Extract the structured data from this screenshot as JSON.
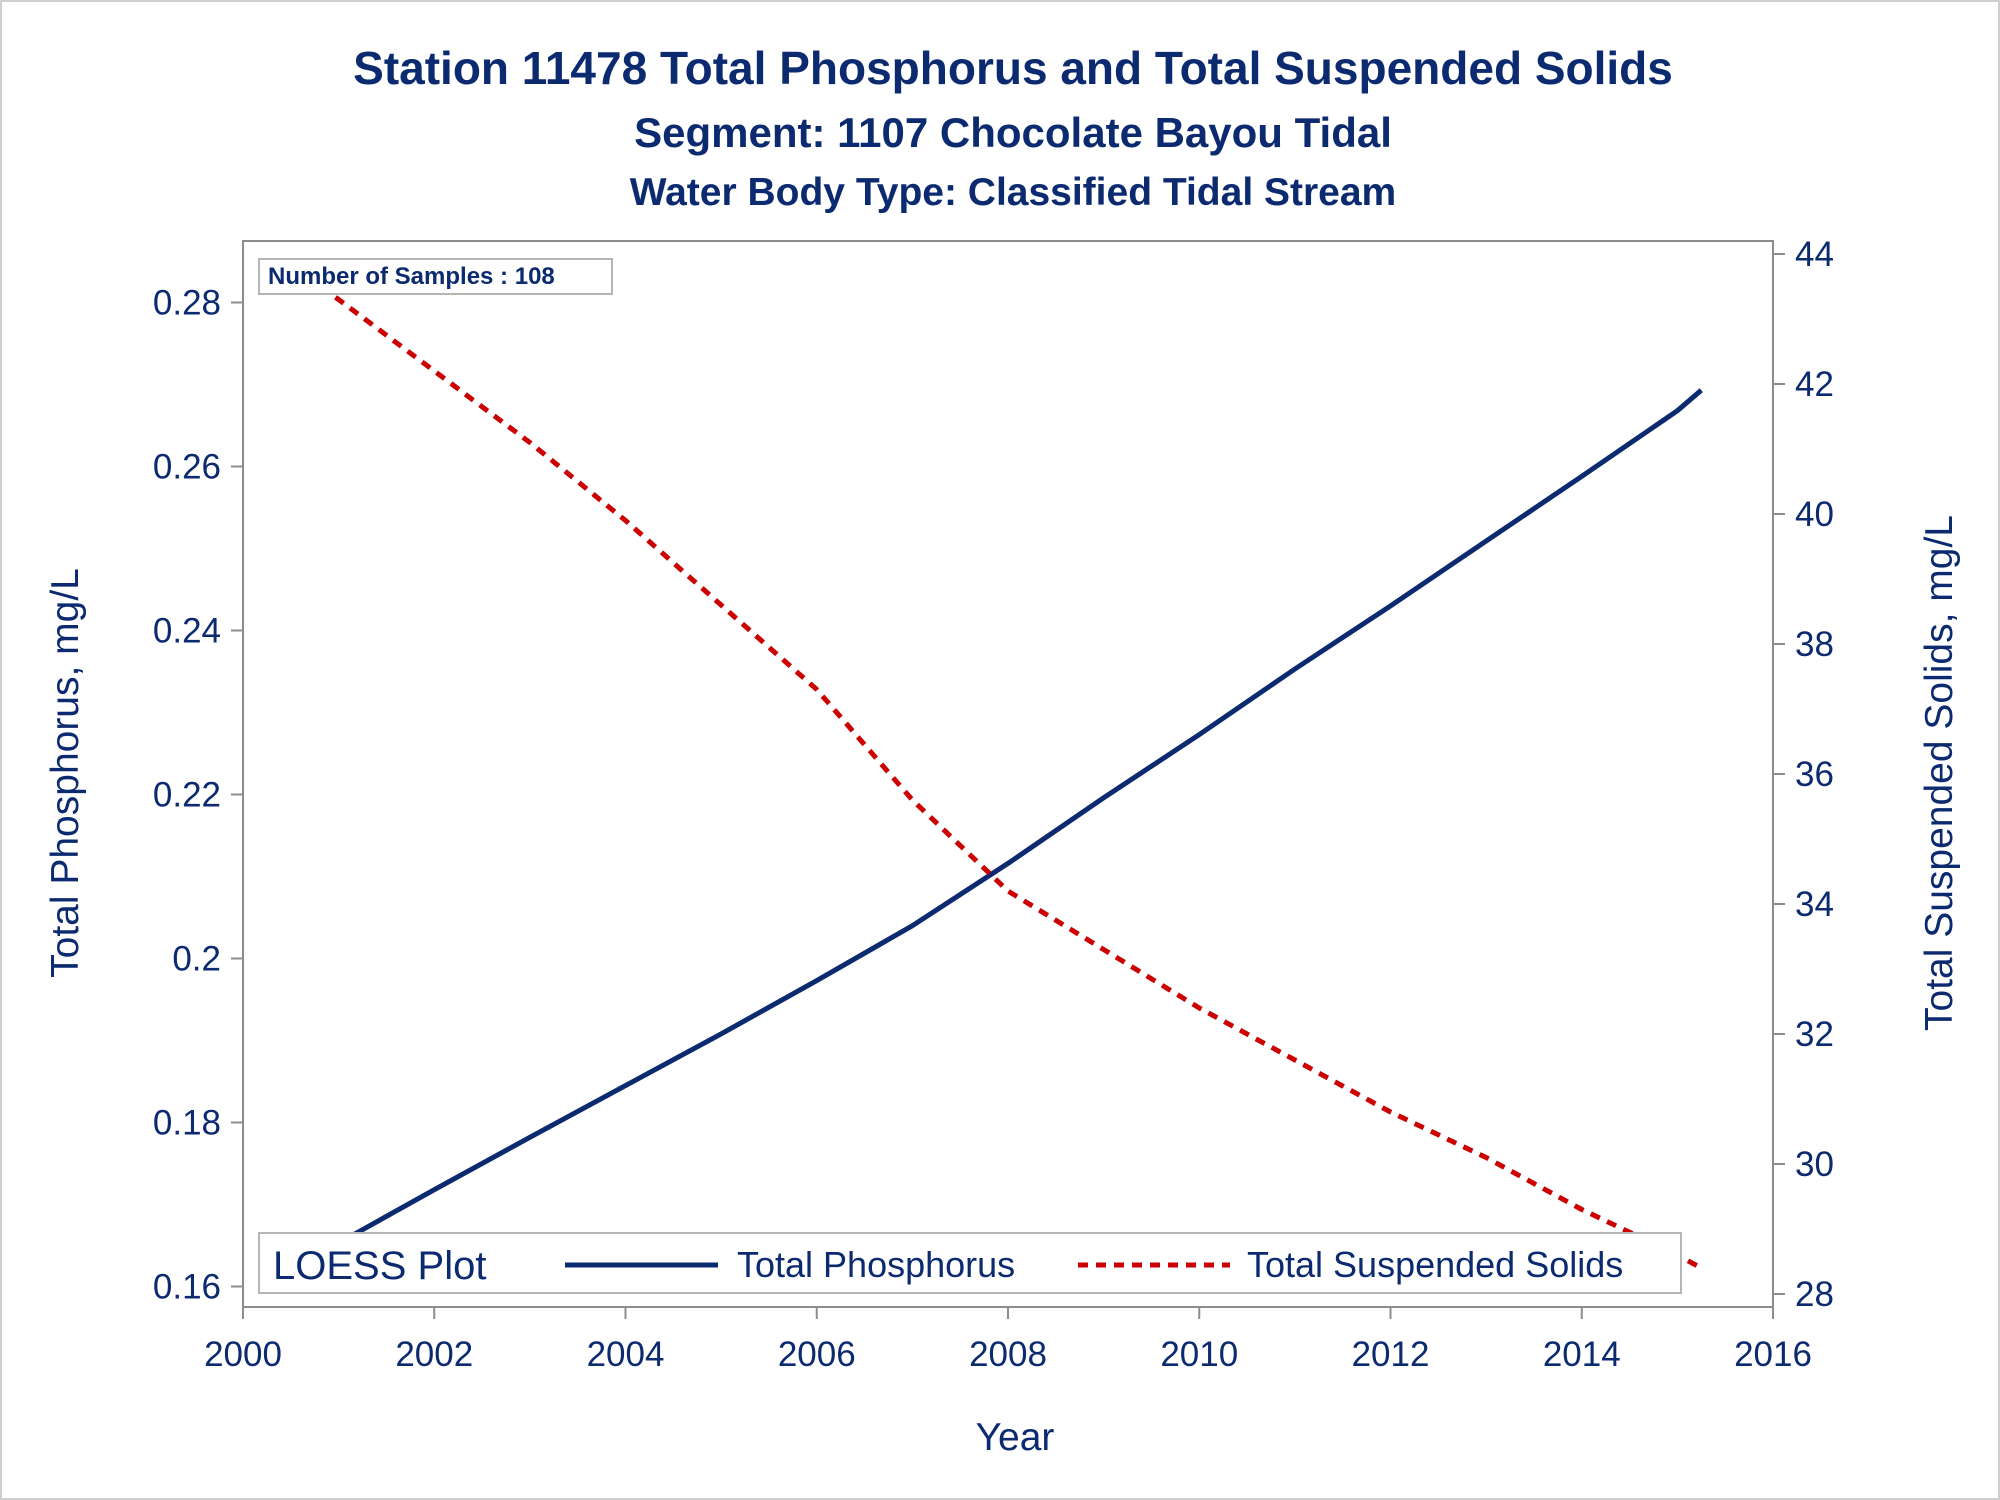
{
  "chart_data": {
    "type": "line",
    "title": "Station 11478  Total Phosphorus and Total Suspended Solids",
    "subtitle": "Segment: 1107  Chocolate Bayou Tidal",
    "subtitle2": "Water Body Type: Classified Tidal Stream",
    "xlabel": "Year",
    "ylabel": "Total Phosphorus, mg/L",
    "y2label": "Total Suspended Solids, mg/L",
    "xlim": [
      2000,
      2016
    ],
    "ylim": [
      0.1575,
      0.2875
    ],
    "y2lim": [
      27.8,
      44.2
    ],
    "x_ticks": [
      "2000",
      "2002",
      "2004",
      "2006",
      "2008",
      "2010",
      "2012",
      "2014",
      "2016"
    ],
    "y_ticks": [
      "0.16",
      "0.18",
      "0.2",
      "0.22",
      "0.24",
      "0.26",
      "0.28"
    ],
    "y2_ticks": [
      "28",
      "30",
      "32",
      "34",
      "36",
      "38",
      "40",
      "42",
      "44"
    ],
    "annotation": "Number of Samples : 108",
    "legend": {
      "title": "LOESS Plot",
      "placement": "bottom-inside",
      "entries": [
        "Total Phosphorus",
        "Total Suspended Solids"
      ]
    },
    "grid": false,
    "colors": {
      "phosphorus": "#0b2a6f",
      "tss": "#cc0000",
      "text": "#0b2a6f",
      "axis": "#8c8c8c"
    },
    "series": [
      {
        "name": "Total Phosphorus",
        "axis": "left",
        "style": "solid",
        "x": [
          2000.5,
          2001,
          2002,
          2003,
          2004,
          2005,
          2006,
          2007,
          2008,
          2009,
          2010,
          2011,
          2012,
          2013,
          2014,
          2015,
          2015.25
        ],
        "y": [
          0.1608,
          0.1653,
          0.1718,
          0.1782,
          0.1845,
          0.1908,
          0.1973,
          0.204,
          0.2116,
          0.2196,
          0.2273,
          0.2353,
          0.243,
          0.2509,
          0.2588,
          0.2668,
          0.2693
        ]
      },
      {
        "name": "Total Suspended Solids",
        "axis": "right",
        "style": "dashed",
        "x": [
          2000.5,
          2001,
          2002,
          2003,
          2004,
          2005,
          2006,
          2007,
          2008,
          2009,
          2010,
          2011,
          2012,
          2013,
          2014,
          2015,
          2015.25
        ],
        "y": [
          43.8,
          43.3,
          42.2,
          41.1,
          39.9,
          38.6,
          37.3,
          35.6,
          34.2,
          33.3,
          32.4,
          31.6,
          30.8,
          30.1,
          29.3,
          28.6,
          28.4
        ]
      }
    ]
  }
}
